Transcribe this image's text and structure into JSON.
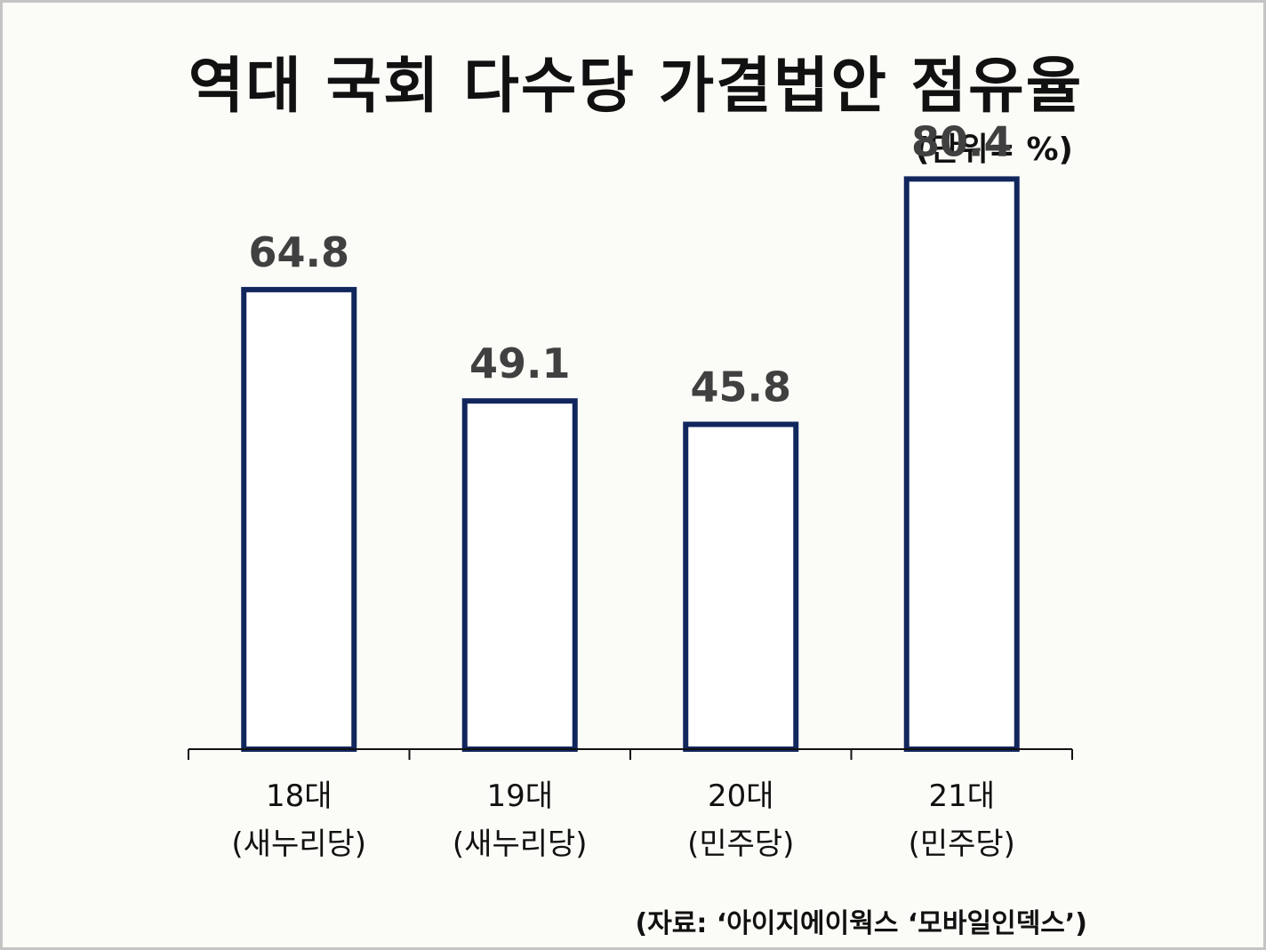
{
  "colors": {
    "background": "#fbfbf7",
    "bar_fill": "#ffffff",
    "bar_stroke": "#12265e",
    "axis": "#111111",
    "value_label": "#404040",
    "text": "#111111"
  },
  "chart_data": {
    "type": "bar",
    "title": "역대 국회 다수당 가결법안 점유율",
    "unit_label": "(단위= %)",
    "source": "(자료: ‘아이지에이웍스 ‘모바일인덱스’)",
    "categories": [
      [
        "18대",
        "(새누리당)"
      ],
      [
        "19대",
        "(새누리당)"
      ],
      [
        "20대",
        "(민주당)"
      ],
      [
        "21대",
        "(민주당)"
      ]
    ],
    "values": [
      64.8,
      49.1,
      45.8,
      80.4
    ],
    "value_labels": [
      "64.8",
      "49.1",
      "45.8",
      "80.4"
    ],
    "ylim": [
      0,
      100
    ],
    "grid": false,
    "legend": "none"
  }
}
